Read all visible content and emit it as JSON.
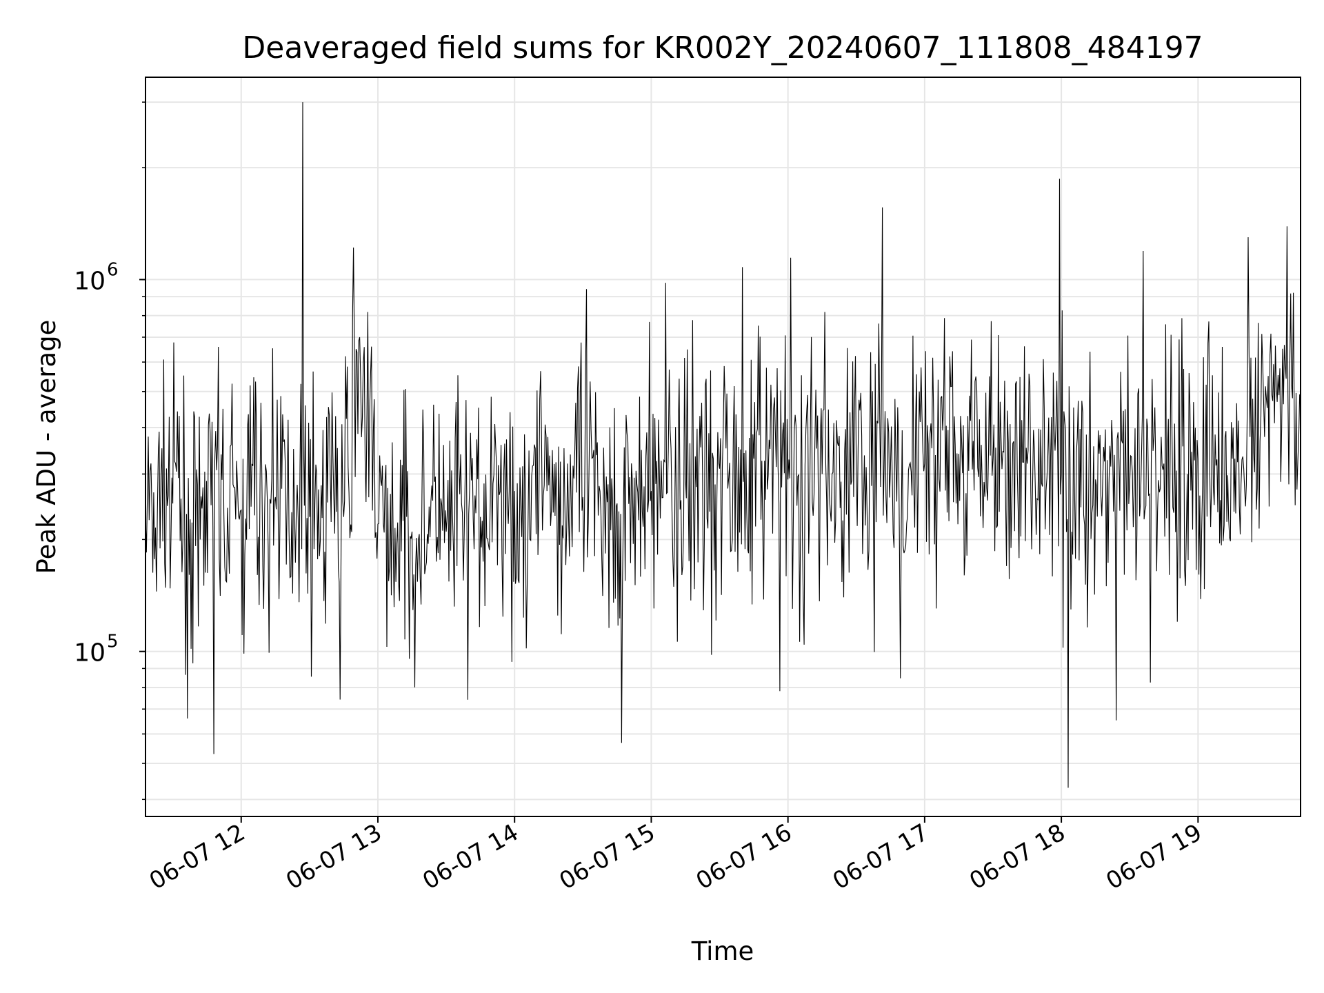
{
  "chart_data": {
    "type": "line",
    "title": "Deaveraged field sums for KR002Y_20240607_111808_484197",
    "xlabel": "Time",
    "ylabel": "Peak ADU - average",
    "yscale": "log",
    "ylim": [
      36000,
      3500000
    ],
    "xlim": [
      "2024-06-07 11:18",
      "2024-06-07 19:45"
    ],
    "grid": true,
    "x_ticks": [
      {
        "value": "2024-06-07 12:00",
        "label": "06-07 12"
      },
      {
        "value": "2024-06-07 13:00",
        "label": "06-07 13"
      },
      {
        "value": "2024-06-07 14:00",
        "label": "06-07 14"
      },
      {
        "value": "2024-06-07 15:00",
        "label": "06-07 15"
      },
      {
        "value": "2024-06-07 16:00",
        "label": "06-07 16"
      },
      {
        "value": "2024-06-07 17:00",
        "label": "06-07 17"
      },
      {
        "value": "2024-06-07 18:00",
        "label": "06-07 18"
      },
      {
        "value": "2024-06-07 19:00",
        "label": "06-07 19"
      }
    ],
    "y_ticks": [
      {
        "value": 100000,
        "label_base": "10",
        "label_exp": "5"
      },
      {
        "value": 1000000,
        "label_base": "10",
        "label_exp": "6"
      }
    ],
    "series": [
      {
        "color": "#000000",
        "x": [
          "2024-06-07 11:18",
          "2024-06-07 11:30",
          "2024-06-07 11:42",
          "2024-06-07 11:48",
          "2024-06-07 12:00",
          "2024-06-07 12:15",
          "2024-06-07 12:27",
          "2024-06-07 12:30",
          "2024-06-07 12:45",
          "2024-06-07 12:52",
          "2024-06-07 13:00",
          "2024-06-07 13:15",
          "2024-06-07 13:30",
          "2024-06-07 13:45",
          "2024-06-07 14:00",
          "2024-06-07 14:15",
          "2024-06-07 14:30",
          "2024-06-07 14:45",
          "2024-06-07 15:00",
          "2024-06-07 15:15",
          "2024-06-07 15:30",
          "2024-06-07 15:40",
          "2024-06-07 15:45",
          "2024-06-07 16:00",
          "2024-06-07 16:15",
          "2024-06-07 16:30",
          "2024-06-07 16:45",
          "2024-06-07 17:00",
          "2024-06-07 17:15",
          "2024-06-07 17:30",
          "2024-06-07 17:45",
          "2024-06-07 18:00",
          "2024-06-07 18:03",
          "2024-06-07 18:15",
          "2024-06-07 18:30",
          "2024-06-07 18:45",
          "2024-06-07 19:00",
          "2024-06-07 19:15",
          "2024-06-07 19:22",
          "2024-06-07 19:30",
          "2024-06-07 19:45"
        ],
        "y": [
          230000,
          250000,
          200000,
          53000,
          240000,
          260000,
          3000000,
          230000,
          230000,
          700000,
          220000,
          210000,
          210000,
          230000,
          270000,
          280000,
          260000,
          250000,
          270000,
          290000,
          310000,
          1080000,
          330000,
          290000,
          300000,
          300000,
          310000,
          320000,
          340000,
          330000,
          320000,
          300000,
          43000,
          290000,
          280000,
          320000,
          330000,
          330000,
          1300000,
          480000,
          450000
        ]
      }
    ]
  }
}
